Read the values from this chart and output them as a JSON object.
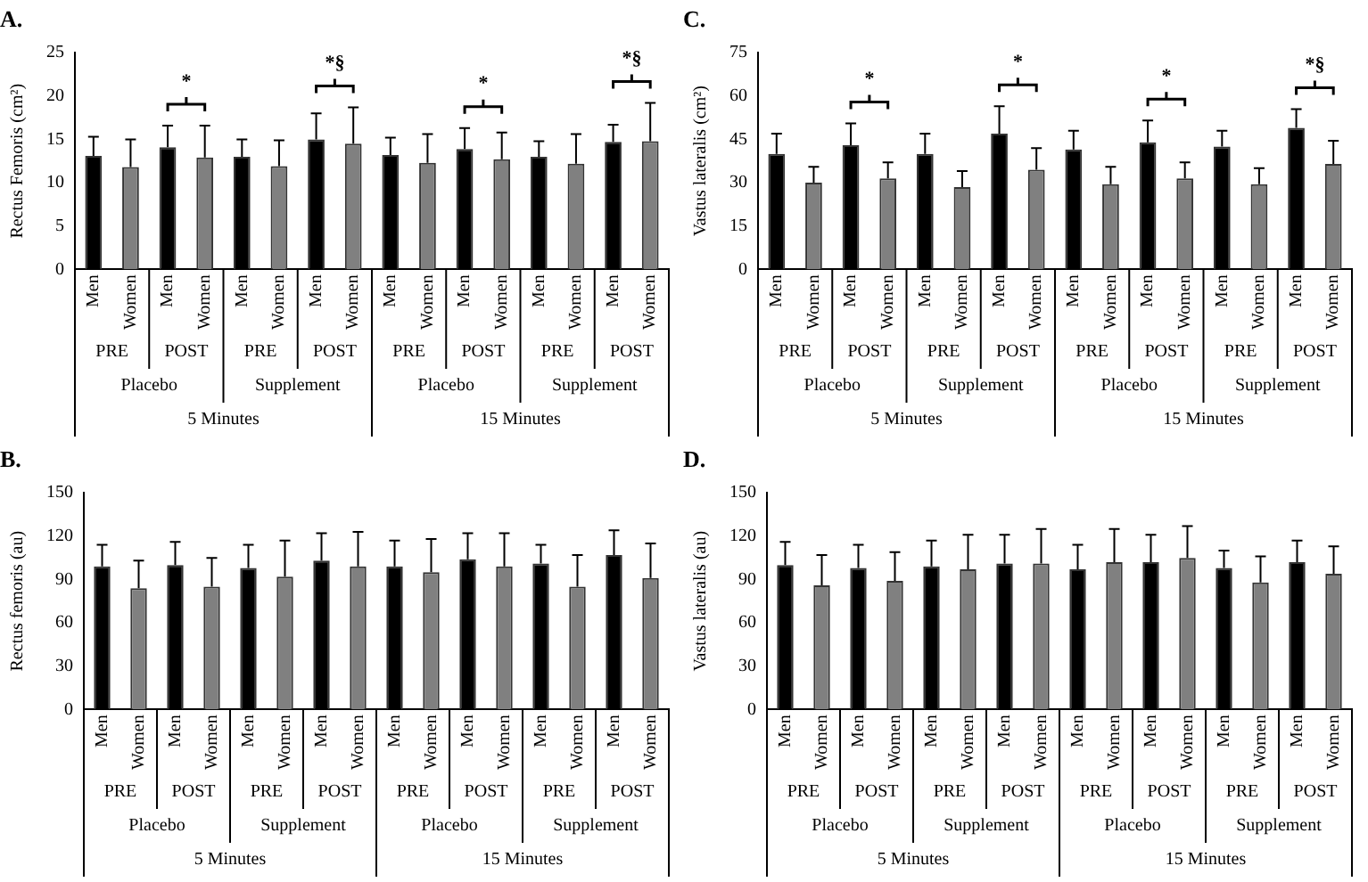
{
  "chart_data": [
    {
      "type": "bar",
      "title": "A.",
      "ylabel": "Rectus Femoris (cm²)",
      "categories": [
        "Men",
        "Women",
        "Men",
        "Women",
        "Men",
        "Women",
        "Men",
        "Women",
        "Men",
        "Women",
        "Men",
        "Women",
        "Men",
        "Women",
        "Men",
        "Women"
      ],
      "values": [
        13.1,
        11.8,
        14.1,
        12.9,
        13.0,
        11.9,
        15.0,
        14.5,
        13.2,
        12.3,
        13.9,
        12.7,
        13.0,
        12.2,
        14.7,
        14.8
      ],
      "errors": [
        [
          13.1,
          15.3
        ],
        [
          11.8,
          15.0
        ],
        [
          14.1,
          16.6
        ],
        [
          12.9,
          16.6
        ],
        [
          13.0,
          15.0
        ],
        [
          11.9,
          14.9
        ],
        [
          15.0,
          18.0
        ],
        [
          14.5,
          18.7
        ],
        [
          13.2,
          15.2
        ],
        [
          12.3,
          15.6
        ],
        [
          13.9,
          16.3
        ],
        [
          12.7,
          15.8
        ],
        [
          13.0,
          14.8
        ],
        [
          12.2,
          15.6
        ],
        [
          14.7,
          16.7
        ],
        [
          14.8,
          19.2
        ]
      ],
      "colors": [
        "#000000",
        "#808080",
        "#000000",
        "#808080",
        "#000000",
        "#808080",
        "#000000",
        "#808080",
        "#000000",
        "#808080",
        "#000000",
        "#808080",
        "#000000",
        "#808080",
        "#000000",
        "#808080"
      ],
      "ylim": [
        0,
        25
      ],
      "yticks": [
        0,
        5,
        10,
        15,
        20,
        25
      ],
      "grid": false,
      "legend": false,
      "annotations": [
        "PRE",
        "POST",
        "PRE",
        "POST",
        "PRE",
        "POST",
        "PRE",
        "POST",
        "Placebo",
        "Supplement",
        "Placebo",
        "Supplement",
        "5 Minutes",
        "15 Minutes",
        "*",
        "*§",
        "*",
        "*§"
      ]
    },
    {
      "type": "bar",
      "title": "C.",
      "ylabel": "Vastus lateralis (cm²)",
      "categories": [
        "Men",
        "Women",
        "Men",
        "Women",
        "Men",
        "Women",
        "Men",
        "Women",
        "Men",
        "Women",
        "Men",
        "Women",
        "Men",
        "Women",
        "Men",
        "Women"
      ],
      "values": [
        40,
        30,
        43,
        31.5,
        40,
        28.5,
        47,
        34.5,
        41.5,
        29.5,
        44,
        31.5,
        42.5,
        29.5,
        49,
        36.5
      ],
      "errors": [
        [
          40,
          47
        ],
        [
          30,
          35.5
        ],
        [
          43,
          50.5
        ],
        [
          31.5,
          37
        ],
        [
          40,
          47
        ],
        [
          28.5,
          34
        ],
        [
          47,
          56.5
        ],
        [
          34.5,
          42
        ],
        [
          41.5,
          48
        ],
        [
          29.5,
          35.5
        ],
        [
          44,
          51.5
        ],
        [
          31.5,
          37
        ],
        [
          42.5,
          48
        ],
        [
          29.5,
          35
        ],
        [
          49,
          55.5
        ],
        [
          36.5,
          44.5
        ]
      ],
      "colors": [
        "#000000",
        "#808080",
        "#000000",
        "#808080",
        "#000000",
        "#808080",
        "#000000",
        "#808080",
        "#000000",
        "#808080",
        "#000000",
        "#808080",
        "#000000",
        "#808080",
        "#000000",
        "#808080"
      ],
      "ylim": [
        0,
        75
      ],
      "yticks": [
        0,
        15,
        30,
        45,
        60,
        75
      ],
      "grid": false,
      "legend": false,
      "annotations": [
        "PRE",
        "POST",
        "PRE",
        "POST",
        "PRE",
        "POST",
        "PRE",
        "POST",
        "Placebo",
        "Supplement",
        "Placebo",
        "Supplement",
        "5 Minutes",
        "15 Minutes",
        "*",
        "*",
        "*",
        "*§"
      ]
    },
    {
      "type": "bar",
      "title": "B.",
      "ylabel": "Rectus femoris (au)",
      "categories": [
        "Men",
        "Women",
        "Men",
        "Women",
        "Men",
        "Women",
        "Men",
        "Women",
        "Men",
        "Women",
        "Men",
        "Women",
        "Men",
        "Women",
        "Men",
        "Women"
      ],
      "values": [
        99,
        84,
        100,
        85,
        98,
        92,
        103,
        99,
        99,
        95,
        104,
        99,
        101,
        85,
        107,
        91
      ],
      "errors": [
        [
          99,
          114
        ],
        [
          84,
          103
        ],
        [
          100,
          116
        ],
        [
          85,
          105
        ],
        [
          98,
          114
        ],
        [
          92,
          117
        ],
        [
          103,
          122
        ],
        [
          99,
          123
        ],
        [
          99,
          117
        ],
        [
          95,
          118
        ],
        [
          104,
          122
        ],
        [
          99,
          122
        ],
        [
          101,
          114
        ],
        [
          85,
          107
        ],
        [
          107,
          124
        ],
        [
          91,
          115
        ]
      ],
      "colors": [
        "#000000",
        "#808080",
        "#000000",
        "#808080",
        "#000000",
        "#808080",
        "#000000",
        "#808080",
        "#000000",
        "#808080",
        "#000000",
        "#808080",
        "#000000",
        "#808080",
        "#000000",
        "#808080"
      ],
      "ylim": [
        0,
        150
      ],
      "yticks": [
        0,
        30,
        60,
        90,
        120,
        150
      ],
      "grid": false,
      "legend": false,
      "annotations": [
        "PRE",
        "POST",
        "PRE",
        "POST",
        "PRE",
        "POST",
        "PRE",
        "POST",
        "Placebo",
        "Supplement",
        "Placebo",
        "Supplement",
        "5 Minutes",
        "15 Minutes"
      ]
    },
    {
      "type": "bar",
      "title": "D.",
      "ylabel": "Vastus lateralis (au)",
      "categories": [
        "Men",
        "Women",
        "Men",
        "Women",
        "Men",
        "Women",
        "Men",
        "Women",
        "Men",
        "Women",
        "Men",
        "Women",
        "Men",
        "Women",
        "Men",
        "Women"
      ],
      "values": [
        100,
        86,
        98,
        89,
        99,
        97,
        101,
        101,
        97,
        102,
        102,
        105,
        98,
        88,
        102,
        94
      ],
      "errors": [
        [
          100,
          116
        ],
        [
          86,
          107
        ],
        [
          98,
          114
        ],
        [
          89,
          109
        ],
        [
          99,
          117
        ],
        [
          97,
          121
        ],
        [
          101,
          121
        ],
        [
          101,
          125
        ],
        [
          97,
          114
        ],
        [
          102,
          125
        ],
        [
          102,
          121
        ],
        [
          105,
          127
        ],
        [
          98,
          110
        ],
        [
          88,
          106
        ],
        [
          102,
          117
        ],
        [
          94,
          113
        ]
      ],
      "colors": [
        "#000000",
        "#808080",
        "#000000",
        "#808080",
        "#000000",
        "#808080",
        "#000000",
        "#808080",
        "#000000",
        "#808080",
        "#000000",
        "#808080",
        "#000000",
        "#808080",
        "#000000",
        "#808080"
      ],
      "ylim": [
        0,
        150
      ],
      "yticks": [
        0,
        30,
        60,
        90,
        120,
        150
      ],
      "grid": false,
      "legend": false,
      "annotations": [
        "PRE",
        "POST",
        "PRE",
        "POST",
        "PRE",
        "POST",
        "PRE",
        "POST",
        "Placebo",
        "Supplement",
        "Placebo",
        "Supplement",
        "5 Minutes",
        "15 Minutes"
      ]
    }
  ]
}
